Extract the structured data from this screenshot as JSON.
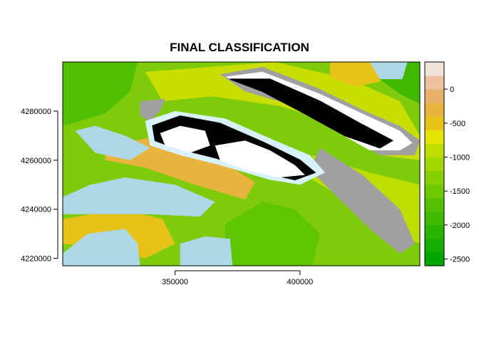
{
  "chart_data": {
    "type": "heatmap",
    "title": "FINAL CLASSIFICATION",
    "xlabel": "",
    "ylabel": "",
    "xlim": [
      305000,
      448000
    ],
    "ylim": [
      4217000,
      4300000
    ],
    "x_ticks": [
      350000,
      400000
    ],
    "x_tick_labels": [
      "350000",
      "400000"
    ],
    "y_ticks": [
      4220000,
      4240000,
      4260000,
      4280000
    ],
    "y_tick_labels": [
      "4220000",
      "4240000",
      "4260000",
      "4280000"
    ],
    "legend": {
      "placement": "right",
      "range": [
        -2600,
        400
      ],
      "ticks": [
        0,
        -500,
        -1000,
        -1500,
        -2000,
        -2500
      ],
      "tick_labels": [
        "0",
        "-500",
        "-1000",
        "-1500",
        "-2000",
        "-2500"
      ],
      "bins": [
        {
          "from": -2600,
          "to": -2400,
          "color": "#00A600"
        },
        {
          "from": -2400,
          "to": -2200,
          "color": "#14AD00"
        },
        {
          "from": -2200,
          "to": -2000,
          "color": "#29B400"
        },
        {
          "from": -2000,
          "to": -1800,
          "color": "#3EBB00"
        },
        {
          "from": -1800,
          "to": -1600,
          "color": "#55C200"
        },
        {
          "from": -1600,
          "to": -1400,
          "color": "#6DC900"
        },
        {
          "from": -1400,
          "to": -1200,
          "color": "#86D000"
        },
        {
          "from": -1200,
          "to": -1000,
          "color": "#A1D600"
        },
        {
          "from": -1000,
          "to": -800,
          "color": "#BEDD00"
        },
        {
          "from": -800,
          "to": -600,
          "color": "#E6E402"
        },
        {
          "from": -600,
          "to": -400,
          "color": "#E7C31A"
        },
        {
          "from": -400,
          "to": -200,
          "color": "#E8B43D"
        },
        {
          "from": -200,
          "to": 0,
          "color": "#EAB16E"
        },
        {
          "from": 0,
          "to": 200,
          "color": "#EDC0A0"
        },
        {
          "from": 200,
          "to": 400,
          "color": "#F0E4DA"
        }
      ]
    },
    "classes": {
      "water": "#ADD8E6",
      "water_edge": "#D7F2FA",
      "snow": "#FFFFFF",
      "rock": "#A0A0A0",
      "shadow": "#000000"
    },
    "regions": [
      {
        "name": "background",
        "cls": "lowland",
        "color": "#7DCB0A",
        "points": [
          [
            305000,
            4217000
          ],
          [
            448000,
            4217000
          ],
          [
            448000,
            4300000
          ],
          [
            305000,
            4300000
          ]
        ]
      },
      {
        "name": "west-forest",
        "cls": "elev",
        "color": "#4FBF00",
        "points": [
          [
            305000,
            4300000
          ],
          [
            335000,
            4300000
          ],
          [
            332000,
            4288000
          ],
          [
            322000,
            4279000
          ],
          [
            305000,
            4274000
          ]
        ]
      },
      {
        "name": "northeast-forest",
        "cls": "elev",
        "color": "#3FB900",
        "points": [
          [
            432000,
            4300000
          ],
          [
            448000,
            4300000
          ],
          [
            448000,
            4283000
          ],
          [
            440000,
            4287000
          ],
          [
            432000,
            4293000
          ]
        ]
      },
      {
        "name": "central-south-forest",
        "cls": "elev",
        "color": "#5EC500",
        "points": [
          [
            370000,
            4217000
          ],
          [
            405000,
            4217000
          ],
          [
            408000,
            4230000
          ],
          [
            398000,
            4240000
          ],
          [
            385000,
            4243000
          ],
          [
            370000,
            4234000
          ]
        ]
      },
      {
        "name": "north-yellow-band",
        "cls": "elev",
        "color": "#C8DE00",
        "points": [
          [
            338000,
            4296000
          ],
          [
            390000,
            4300000
          ],
          [
            420000,
            4293000
          ],
          [
            440000,
            4284000
          ],
          [
            448000,
            4270000
          ],
          [
            448000,
            4260000
          ],
          [
            432000,
            4262000
          ],
          [
            415000,
            4275000
          ],
          [
            392000,
            4282000
          ],
          [
            365000,
            4286000
          ],
          [
            345000,
            4284000
          ]
        ]
      },
      {
        "name": "southeast-yellow-band",
        "cls": "elev",
        "color": "#BEDD00",
        "points": [
          [
            405000,
            4262000
          ],
          [
            428000,
            4255000
          ],
          [
            448000,
            4250000
          ],
          [
            448000,
            4226000
          ],
          [
            438000,
            4230000
          ],
          [
            420000,
            4243000
          ],
          [
            405000,
            4252000
          ]
        ]
      },
      {
        "name": "west-orange-patch",
        "cls": "elev",
        "color": "#E8B43D",
        "points": [
          [
            322000,
            4266000
          ],
          [
            345000,
            4270000
          ],
          [
            365000,
            4262000
          ],
          [
            382000,
            4251000
          ],
          [
            378000,
            4244000
          ],
          [
            358000,
            4250000
          ],
          [
            338000,
            4257000
          ],
          [
            322000,
            4260000
          ]
        ]
      },
      {
        "name": "southwest-orange",
        "cls": "elev",
        "color": "#E7C31A",
        "points": [
          [
            305000,
            4236000
          ],
          [
            328000,
            4240000
          ],
          [
            345000,
            4236000
          ],
          [
            350000,
            4226000
          ],
          [
            338000,
            4220000
          ],
          [
            322000,
            4224000
          ],
          [
            305000,
            4226000
          ]
        ]
      },
      {
        "name": "northeast-orange",
        "cls": "elev",
        "color": "#E7C31A",
        "points": [
          [
            412000,
            4300000
          ],
          [
            430000,
            4300000
          ],
          [
            432000,
            4292000
          ],
          [
            422000,
            4290000
          ],
          [
            412000,
            4294000
          ]
        ]
      },
      {
        "name": "north-water",
        "cls": "water",
        "color": "#ADD8E6",
        "points": [
          [
            428000,
            4300000
          ],
          [
            443000,
            4300000
          ],
          [
            441000,
            4293000
          ],
          [
            432000,
            4293000
          ]
        ]
      },
      {
        "name": "west-lake",
        "cls": "water",
        "color": "#ADD8E6",
        "points": [
          [
            310000,
            4272000
          ],
          [
            318000,
            4274000
          ],
          [
            330000,
            4270000
          ],
          [
            340000,
            4265000
          ],
          [
            332000,
            4260000
          ],
          [
            318000,
            4263000
          ]
        ]
      },
      {
        "name": "southwest-lake",
        "cls": "water",
        "color": "#ADD8E6",
        "points": [
          [
            305000,
            4245000
          ],
          [
            316000,
            4250000
          ],
          [
            330000,
            4253000
          ],
          [
            350000,
            4250000
          ],
          [
            366000,
            4243000
          ],
          [
            360000,
            4237000
          ],
          [
            340000,
            4238000
          ],
          [
            320000,
            4238000
          ],
          [
            305000,
            4238000
          ]
        ]
      },
      {
        "name": "south-water",
        "cls": "water",
        "color": "#ADD8E6",
        "points": [
          [
            305000,
            4222000
          ],
          [
            315000,
            4230000
          ],
          [
            330000,
            4232000
          ],
          [
            335000,
            4226000
          ],
          [
            336000,
            4217000
          ],
          [
            305000,
            4217000
          ]
        ]
      },
      {
        "name": "south-central-water",
        "cls": "water",
        "color": "#ADD8E6",
        "points": [
          [
            352000,
            4217000
          ],
          [
            352000,
            4226000
          ],
          [
            362000,
            4229000
          ],
          [
            372000,
            4228000
          ],
          [
            373000,
            4217000
          ]
        ]
      },
      {
        "name": "west-rock",
        "cls": "rock",
        "color": "#A0A0A0",
        "points": [
          [
            336000,
            4284000
          ],
          [
            346000,
            4285000
          ],
          [
            344000,
            4280000
          ],
          [
            340000,
            4276000
          ],
          [
            336000,
            4278000
          ]
        ]
      },
      {
        "name": "valley-rock",
        "cls": "rock",
        "color": "#A0A0A0",
        "points": [
          [
            408000,
            4265000
          ],
          [
            425000,
            4254000
          ],
          [
            440000,
            4240000
          ],
          [
            446000,
            4226000
          ],
          [
            440000,
            4222000
          ],
          [
            428000,
            4232000
          ],
          [
            414000,
            4246000
          ],
          [
            404000,
            4256000
          ]
        ]
      },
      {
        "name": "north-ridge-rock",
        "cls": "rock",
        "color": "#A0A0A0",
        "points": [
          [
            368000,
            4295000
          ],
          [
            385000,
            4298000
          ],
          [
            408000,
            4289000
          ],
          [
            426000,
            4280000
          ],
          [
            440000,
            4274000
          ],
          [
            448000,
            4268000
          ],
          [
            446000,
            4262000
          ],
          [
            432000,
            4262000
          ],
          [
            418000,
            4270000
          ],
          [
            398000,
            4282000
          ],
          [
            378000,
            4288000
          ]
        ]
      },
      {
        "name": "north-ridge-snow",
        "cls": "snow",
        "color": "#FFFFFF",
        "points": [
          [
            370000,
            4294000
          ],
          [
            385000,
            4296000
          ],
          [
            408000,
            4287000
          ],
          [
            425000,
            4279000
          ],
          [
            440000,
            4272000
          ],
          [
            445000,
            4267000
          ],
          [
            440000,
            4264000
          ],
          [
            428000,
            4264000
          ],
          [
            414000,
            4272000
          ],
          [
            396000,
            4283000
          ],
          [
            380000,
            4290000
          ]
        ]
      },
      {
        "name": "north-ridge-shadow",
        "cls": "shadow",
        "color": "#000000",
        "points": [
          [
            372000,
            4293000
          ],
          [
            388000,
            4293000
          ],
          [
            408000,
            4284000
          ],
          [
            424000,
            4275000
          ],
          [
            437000,
            4268000
          ],
          [
            432000,
            4265000
          ],
          [
            418000,
            4270000
          ],
          [
            400000,
            4280000
          ],
          [
            385000,
            4288000
          ]
        ]
      },
      {
        "name": "central-massif-edge",
        "cls": "water",
        "color": "#D7F2FA",
        "points": [
          [
            338000,
            4276000
          ],
          [
            350000,
            4280000
          ],
          [
            370000,
            4277000
          ],
          [
            390000,
            4268000
          ],
          [
            404000,
            4262000
          ],
          [
            410000,
            4255000
          ],
          [
            400000,
            4250000
          ],
          [
            388000,
            4252000
          ],
          [
            368000,
            4258000
          ],
          [
            352000,
            4262000
          ],
          [
            340000,
            4266000
          ]
        ]
      },
      {
        "name": "central-massif-shadow",
        "cls": "shadow",
        "color": "#000000",
        "points": [
          [
            341000,
            4274000
          ],
          [
            352000,
            4278000
          ],
          [
            368000,
            4275000
          ],
          [
            386000,
            4267000
          ],
          [
            400000,
            4260000
          ],
          [
            406000,
            4255000
          ],
          [
            398000,
            4252000
          ],
          [
            385000,
            4255000
          ],
          [
            366000,
            4261000
          ],
          [
            350000,
            4265000
          ],
          [
            342000,
            4268000
          ]
        ]
      },
      {
        "name": "central-snow-west",
        "cls": "snow",
        "color": "#FFFFFF",
        "points": [
          [
            344000,
            4271000
          ],
          [
            352000,
            4274000
          ],
          [
            362000,
            4272000
          ],
          [
            364000,
            4266000
          ],
          [
            356000,
            4263000
          ],
          [
            346000,
            4266000
          ]
        ]
      },
      {
        "name": "central-snow-east",
        "cls": "snow",
        "color": "#FFFFFF",
        "points": [
          [
            366000,
            4266000
          ],
          [
            378000,
            4268000
          ],
          [
            388000,
            4264000
          ],
          [
            398000,
            4258000
          ],
          [
            402000,
            4254000
          ],
          [
            392000,
            4253000
          ],
          [
            378000,
            4256000
          ],
          [
            368000,
            4260000
          ]
        ]
      }
    ]
  }
}
